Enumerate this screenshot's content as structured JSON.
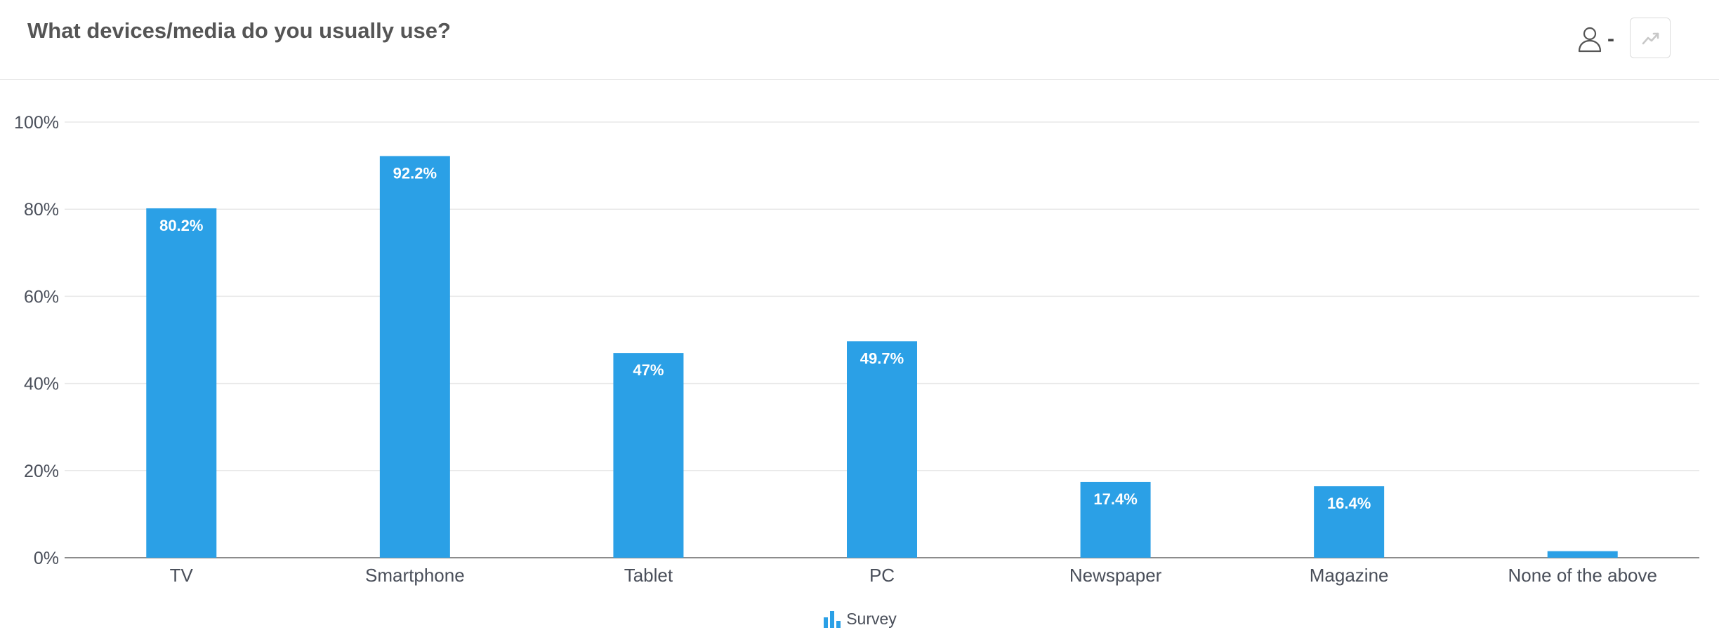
{
  "header": {
    "title": "What devices/media do you usually use?",
    "user_suffix": "-"
  },
  "colors": {
    "bar": "#2ba0e6",
    "grid": "#e8e8e8",
    "axis": "#8c8c8c",
    "accent_icon": "#2ba0e6"
  },
  "icons": {
    "user": "user-icon",
    "trend": "trend-line-icon",
    "legend": "bar-chart-icon"
  },
  "chart_data": {
    "type": "bar",
    "title": "",
    "xlabel": "",
    "ylabel": "",
    "categories": [
      "TV",
      "Smartphone",
      "Tablet",
      "PC",
      "Newspaper",
      "Magazine",
      "None of the above"
    ],
    "series": [
      {
        "name": "Survey",
        "values": [
          80.2,
          92.2,
          47,
          49.7,
          17.4,
          16.4,
          1.5
        ],
        "labels": [
          "80.2%",
          "92.2%",
          "47%",
          "49.7%",
          "17.4%",
          "16.4%",
          ""
        ]
      }
    ],
    "ylim": [
      0,
      100
    ],
    "yticks": [
      0,
      20,
      40,
      60,
      80,
      100
    ],
    "ytick_labels": [
      "0%",
      "20%",
      "40%",
      "60%",
      "80%",
      "100%"
    ],
    "grid": true,
    "legend_position": "bottom-center"
  }
}
